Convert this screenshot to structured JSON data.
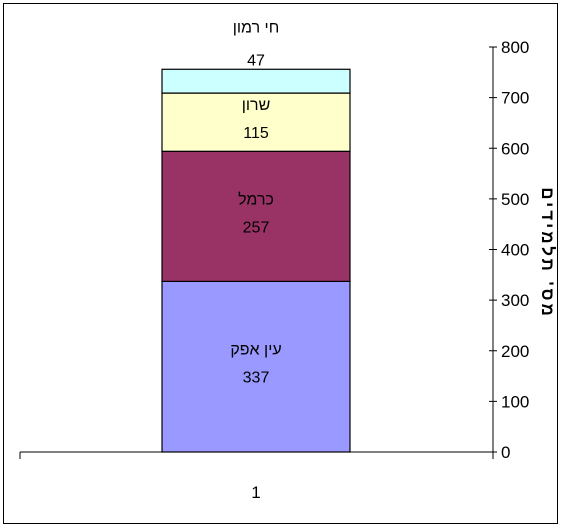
{
  "chart_data": {
    "type": "bar",
    "stacked": true,
    "categories": [
      "1"
    ],
    "series": [
      {
        "name": "עין אפק",
        "values": [
          337
        ],
        "color": "#9999FF"
      },
      {
        "name": "כרמל",
        "values": [
          257
        ],
        "color": "#993366"
      },
      {
        "name": "שרון",
        "values": [
          115
        ],
        "color": "#FFFFCC"
      },
      {
        "name": "חי רמון",
        "values": [
          47
        ],
        "color": "#CCFFFF"
      }
    ],
    "ylabel": "מס' תלמידים",
    "ylim": [
      0,
      800
    ],
    "yticks": [
      "0",
      "100",
      "200",
      "300",
      "400",
      "500",
      "600",
      "700",
      "800"
    ],
    "y_axis_position": "right",
    "legend": "none",
    "grid": false,
    "data_labels": "series name and value"
  }
}
